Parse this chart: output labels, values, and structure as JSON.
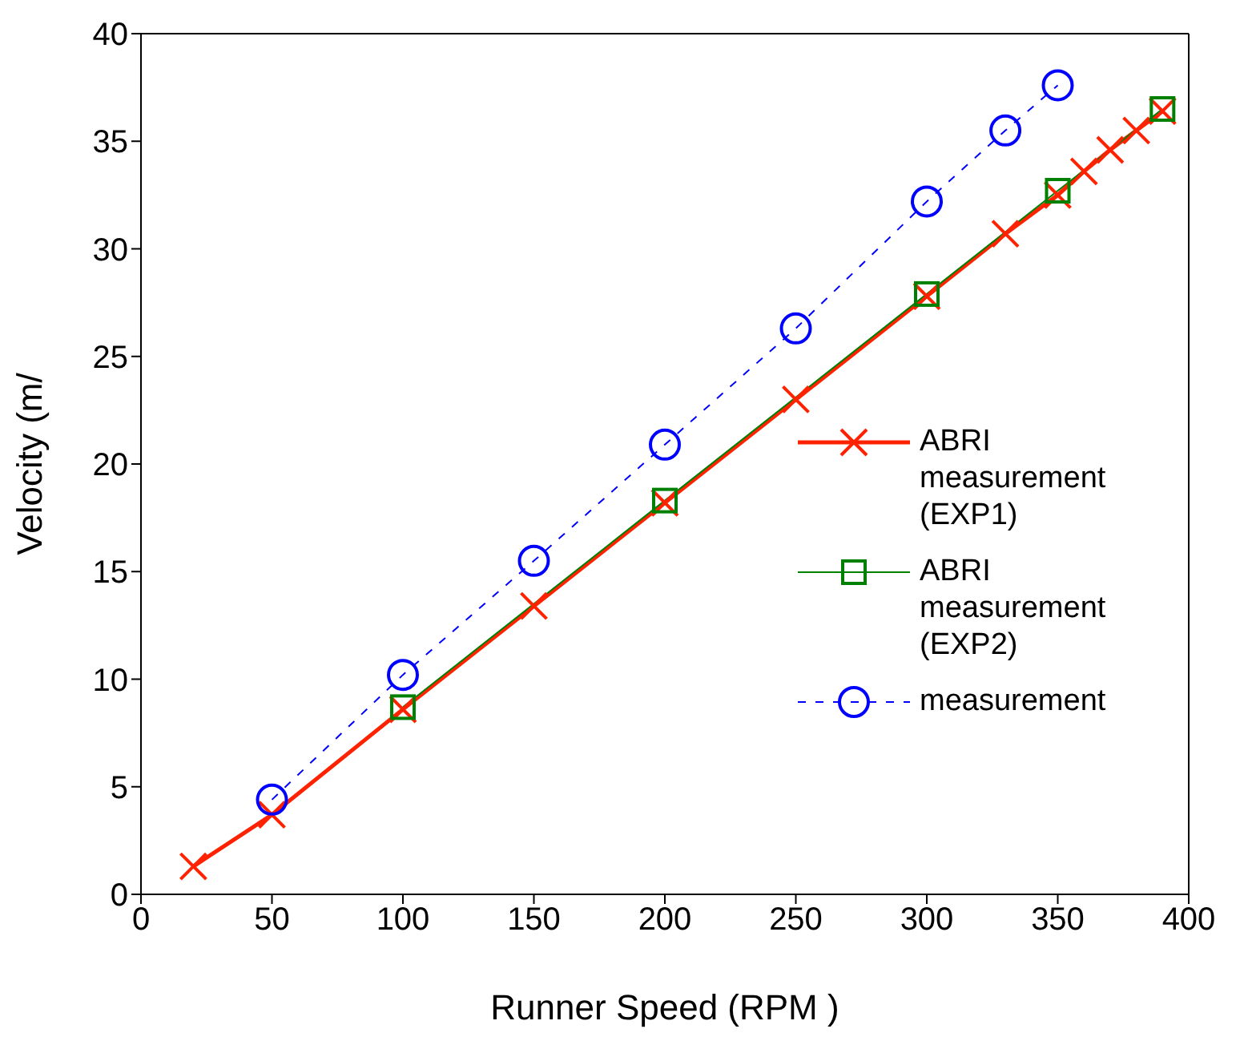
{
  "chart_data": {
    "type": "line",
    "xlabel": "Runner Speed (RPM )",
    "ylabel": "Velocity (m/",
    "xlim": [
      0,
      400
    ],
    "xticks": [
      0,
      50,
      100,
      150,
      200,
      250,
      300,
      350,
      400
    ],
    "ylim": [
      0,
      40
    ],
    "yticks": [
      0,
      5,
      10,
      15,
      20,
      25,
      30,
      35,
      40
    ],
    "grid": false,
    "legend": "right",
    "series": [
      {
        "name": "ABRI measurement (EXP1)",
        "color": "#ff2200",
        "marker": "cross",
        "line_style": "solid",
        "x": [
          20,
          50,
          100,
          150,
          200,
          250,
          300,
          330,
          350,
          360,
          370,
          380,
          390
        ],
        "values": [
          1.3,
          3.7,
          8.6,
          13.4,
          18.2,
          23.0,
          27.8,
          30.7,
          32.5,
          33.6,
          34.6,
          35.5,
          36.4
        ]
      },
      {
        "name": "ABRI measurement (EXP2)",
        "color": "#008000",
        "marker": "square",
        "line_style": "solid",
        "x": [
          100,
          200,
          300,
          350,
          390
        ],
        "values": [
          8.7,
          18.3,
          27.9,
          32.7,
          36.5
        ]
      },
      {
        "name": "measurement",
        "color": "#0000ff",
        "marker": "circle",
        "line_style": "dashed",
        "x": [
          50,
          100,
          150,
          200,
          250,
          300,
          330,
          350
        ],
        "values": [
          4.4,
          10.2,
          15.5,
          20.9,
          26.3,
          32.2,
          35.5,
          37.6
        ]
      }
    ]
  }
}
